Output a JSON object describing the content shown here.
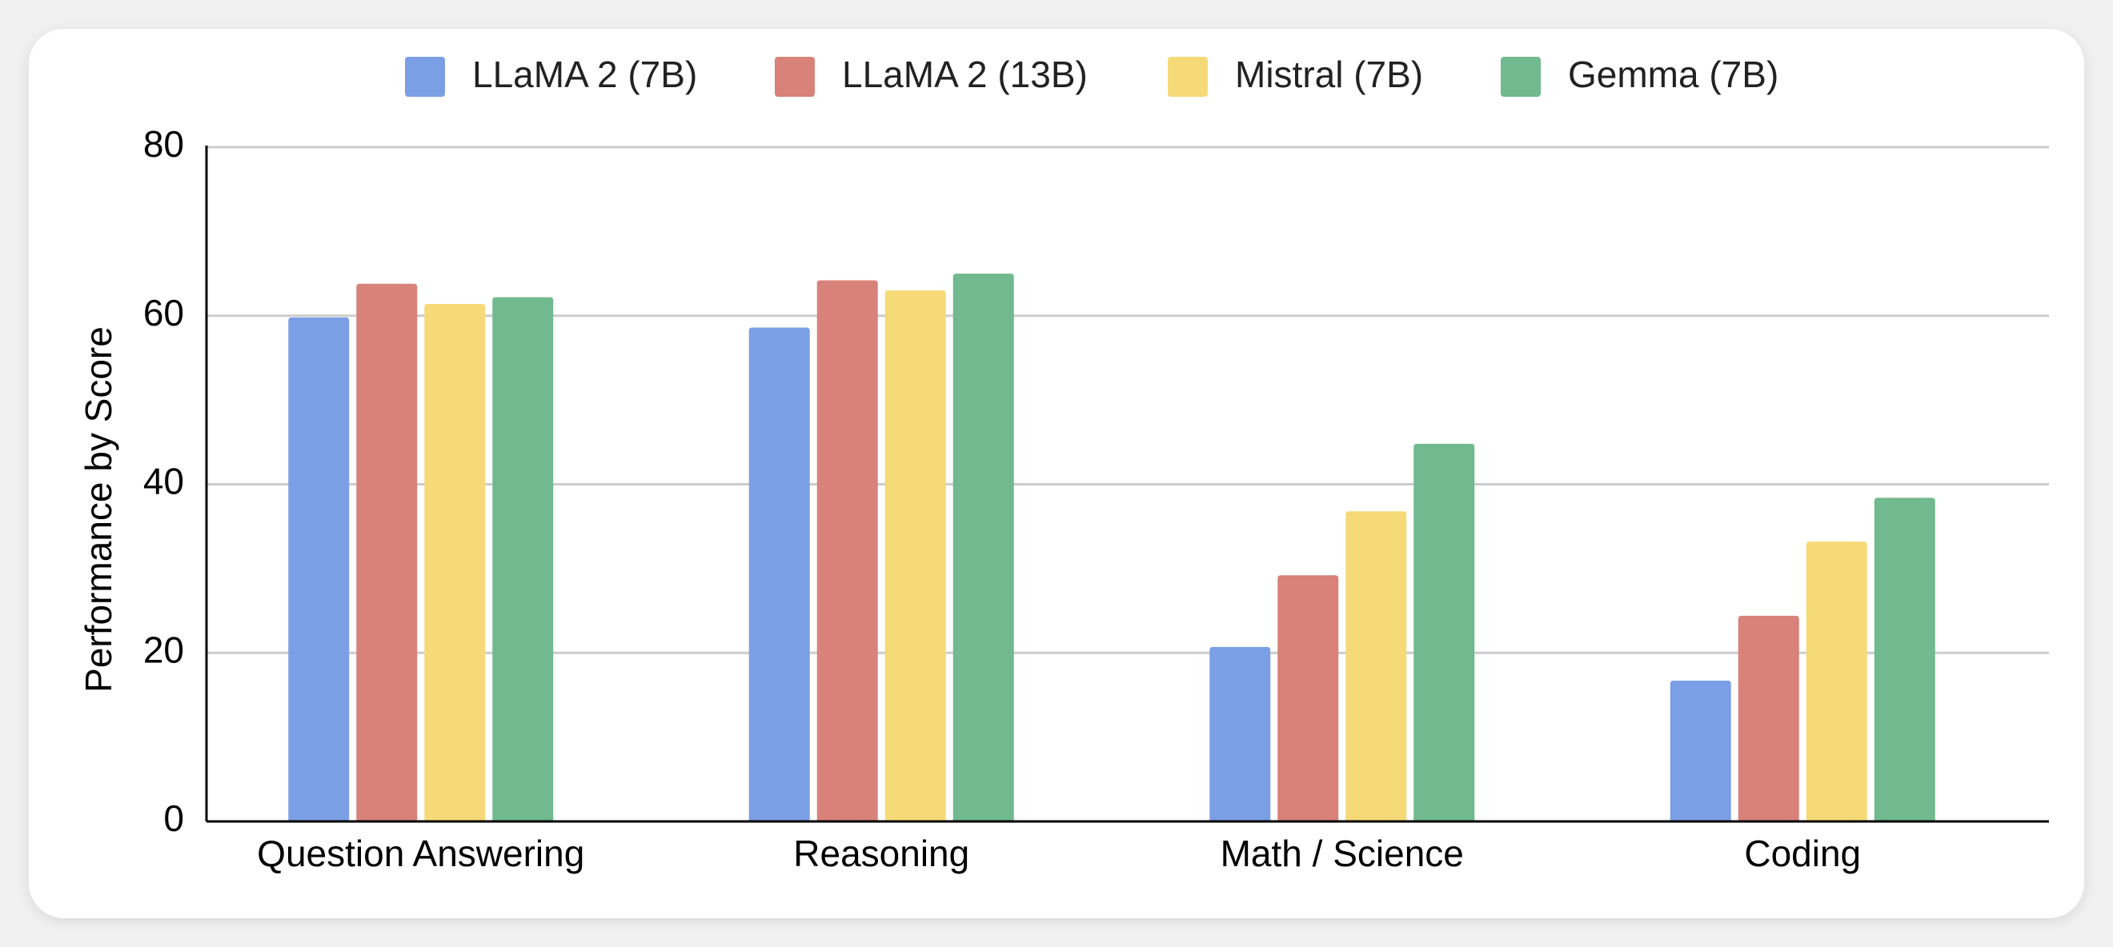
{
  "chart_data": {
    "type": "bar",
    "title": "",
    "xlabel": "",
    "ylabel": "Performance by Score",
    "ylim": [
      0,
      80
    ],
    "yticks": [
      0,
      20,
      40,
      60,
      80
    ],
    "grid": true,
    "legend_position": "top-center",
    "categories": [
      "Question Answering",
      "Reasoning",
      "Math / Science",
      "Coding"
    ],
    "series": [
      {
        "name": "LLaMA 2 (7B)",
        "color": "#7b9fe5",
        "values": [
          59.8,
          58.6,
          20.7,
          16.7
        ]
      },
      {
        "name": "LLaMA 2 (13B)",
        "color": "#d88279",
        "values": [
          63.8,
          64.2,
          29.2,
          24.4
        ]
      },
      {
        "name": "Mistral (7B)",
        "color": "#f6da78",
        "values": [
          61.4,
          63.0,
          36.8,
          33.2
        ]
      },
      {
        "name": "Gemma (7B)",
        "color": "#71b98e",
        "values": [
          62.2,
          65.0,
          44.8,
          38.4
        ]
      }
    ]
  }
}
